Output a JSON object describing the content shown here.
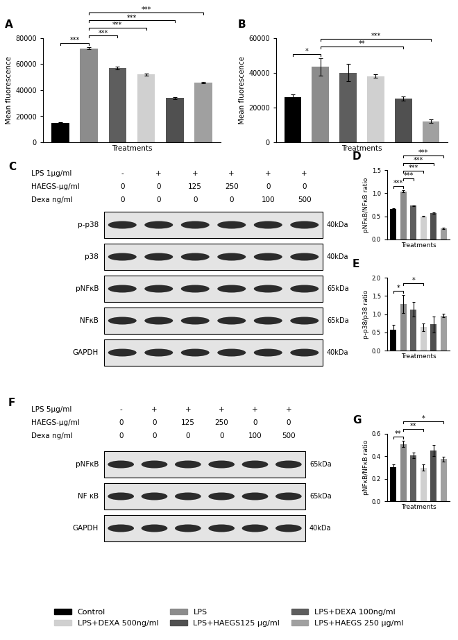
{
  "chart_data": [
    {
      "panel": "A",
      "type": "bar",
      "x_label": "Treatments",
      "y_label": "Mean fluorescence",
      "categories": [
        null,
        null,
        null,
        null,
        null,
        null
      ],
      "values": [
        15000,
        72000,
        57000,
        52000,
        34000,
        46000
      ],
      "errors": [
        300,
        800,
        1200,
        1000,
        800,
        600
      ],
      "colors": [
        "#000000",
        "#8c8c8c",
        "#5e5e5e",
        "#d0d0d0",
        "#505050",
        "#a0a0a0"
      ],
      "ylim": [
        0,
        80000
      ],
      "yticks": [
        0,
        20000,
        40000,
        60000,
        80000
      ],
      "annotations": [
        {
          "from": 0,
          "to": 1,
          "text": "***"
        },
        {
          "from": 1,
          "to": 2,
          "text": "***"
        },
        {
          "from": 1,
          "to": 3,
          "text": "***"
        },
        {
          "from": 1,
          "to": 4,
          "text": "***"
        },
        {
          "from": 1,
          "to": 5,
          "text": "***"
        }
      ]
    },
    {
      "panel": "B",
      "type": "bar",
      "x_label": "Treatments",
      "y_label": "Mean fluorescence",
      "categories": [
        null,
        null,
        null,
        null,
        null,
        null
      ],
      "values": [
        26000,
        43500,
        40000,
        38000,
        25000,
        12000
      ],
      "errors": [
        1500,
        5000,
        5000,
        1000,
        1200,
        1000
      ],
      "colors": [
        "#000000",
        "#8c8c8c",
        "#5e5e5e",
        "#d0d0d0",
        "#505050",
        "#a0a0a0"
      ],
      "ylim": [
        0,
        60000
      ],
      "yticks": [
        0,
        20000,
        40000,
        60000
      ],
      "annotations": [
        {
          "from": 0,
          "to": 1,
          "text": "*"
        },
        {
          "from": 1,
          "to": 4,
          "text": "**"
        },
        {
          "from": 1,
          "to": 5,
          "text": "***"
        }
      ]
    },
    {
      "panel": "D",
      "type": "bar",
      "x_label": "Treatments",
      "y_label": "pNFκB/NFκB ratio",
      "categories": [
        null,
        null,
        null,
        null,
        null,
        null
      ],
      "values": [
        0.66,
        1.04,
        0.73,
        0.5,
        0.57,
        0.24
      ],
      "errors": [
        0.01,
        0.02,
        0.005,
        0.01,
        0.01,
        0.01
      ],
      "colors": [
        "#000000",
        "#8c8c8c",
        "#5e5e5e",
        "#d0d0d0",
        "#505050",
        "#a0a0a0"
      ],
      "ylim": [
        0,
        1.5
      ],
      "yticks": [
        {
          "value": 0,
          "label": "0.0"
        },
        0.5,
        {
          "value": 1,
          "label": "1.0"
        },
        1.5
      ],
      "annotations": [
        {
          "from": 0,
          "to": 1,
          "text": "***"
        },
        {
          "from": 1,
          "to": 2,
          "text": "***"
        },
        {
          "from": 1,
          "to": 3,
          "text": "***"
        },
        {
          "from": 1,
          "to": 4,
          "text": "***"
        },
        {
          "from": 1,
          "to": 5,
          "text": "***"
        }
      ]
    },
    {
      "panel": "E",
      "type": "bar",
      "x_label": "Treatments",
      "y_label": "p-p38/p38 ratio",
      "categories": [
        null,
        null,
        null,
        null,
        null,
        null
      ],
      "values": [
        0.58,
        1.28,
        1.13,
        0.64,
        0.72,
        0.96
      ],
      "errors": [
        0.12,
        0.25,
        0.2,
        0.1,
        0.22,
        0.05
      ],
      "colors": [
        "#000000",
        "#8c8c8c",
        "#5e5e5e",
        "#d0d0d0",
        "#505050",
        "#a0a0a0"
      ],
      "ylim": [
        0,
        2
      ],
      "yticks": [
        {
          "value": 0,
          "label": "0.0"
        },
        0.5,
        {
          "value": 1,
          "label": "1.0"
        },
        1.5,
        {
          "value": 2,
          "label": "2.0"
        }
      ],
      "annotations": [
        {
          "from": 0,
          "to": 1,
          "text": "*"
        },
        {
          "from": 1,
          "to": 3,
          "text": "*"
        }
      ]
    },
    {
      "panel": "G",
      "type": "bar",
      "x_label": "Treatments",
      "y_label": "pNFκB/NFκB ratio",
      "categories": [
        null,
        null,
        null,
        null,
        null,
        null
      ],
      "values": [
        0.305,
        0.51,
        0.41,
        0.3,
        0.45,
        0.375
      ],
      "errors": [
        0.02,
        0.03,
        0.025,
        0.03,
        0.05,
        0.02
      ],
      "colors": [
        "#000000",
        "#8c8c8c",
        "#5e5e5e",
        "#d0d0d0",
        "#505050",
        "#a0a0a0"
      ],
      "ylim": [
        0,
        0.6
      ],
      "yticks": [
        {
          "value": 0,
          "label": "0.0"
        },
        0.2,
        0.4,
        0.6
      ],
      "annotations": [
        {
          "from": 0,
          "to": 1,
          "text": "**"
        },
        {
          "from": 1,
          "to": 3,
          "text": "**"
        },
        {
          "from": 1,
          "to": 5,
          "text": "*"
        }
      ]
    }
  ],
  "blots": [
    {
      "panel": "C",
      "conditions": [
        {
          "label": "LPS 1μg/ml",
          "values": [
            "-",
            "+",
            "+",
            "+",
            "+",
            "+"
          ]
        },
        {
          "label": "HAEGS-μg/ml",
          "values": [
            0,
            0,
            125,
            250,
            0,
            0
          ]
        },
        {
          "label": "Dexa ng/ml",
          "values": [
            0,
            0,
            0,
            0,
            100,
            500
          ]
        }
      ],
      "bands": [
        {
          "name": "p-p38",
          "size": "40kDa"
        },
        {
          "name": "p38",
          "size": "40kDa"
        },
        {
          "name": "pNFκB",
          "size": "65kDa"
        },
        {
          "name": "NFκB",
          "size": "65kDa"
        },
        {
          "name": "GAPDH",
          "size": "40kDa"
        }
      ]
    },
    {
      "panel": "F",
      "conditions": [
        {
          "label": "LPS 5μg/ml",
          "values": [
            "-",
            "+",
            "+",
            "+",
            "+",
            "+"
          ]
        },
        {
          "label": "HAEGS-μg/ml",
          "values": [
            0,
            0,
            125,
            250,
            0,
            0
          ]
        },
        {
          "label": "Dexa ng/ml",
          "values": [
            0,
            0,
            0,
            0,
            100,
            500
          ]
        }
      ],
      "bands": [
        {
          "name": "pNFκB",
          "size": "65kDa"
        },
        {
          "name": "NF κB",
          "size": "65kDa"
        },
        {
          "name": "GAPDH",
          "size": "40kDa"
        }
      ]
    }
  ],
  "legend": {
    "position": "lower center",
    "entries": [
      {
        "name": "Control",
        "color": "#000000"
      },
      {
        "name": "LPS",
        "color": "#8c8c8c"
      },
      {
        "name": "LPS+DEXA 100ng/ml",
        "color": "#5e5e5e"
      },
      {
        "name": "LPS+DEXA 500ng/ml",
        "color": "#d0d0d0"
      },
      {
        "name": "LPS+HAEGS125 μg/ml",
        "color": "#505050"
      },
      {
        "name": "LPS+HAEGS 250 μg/ml",
        "color": "#a0a0a0"
      }
    ]
  }
}
